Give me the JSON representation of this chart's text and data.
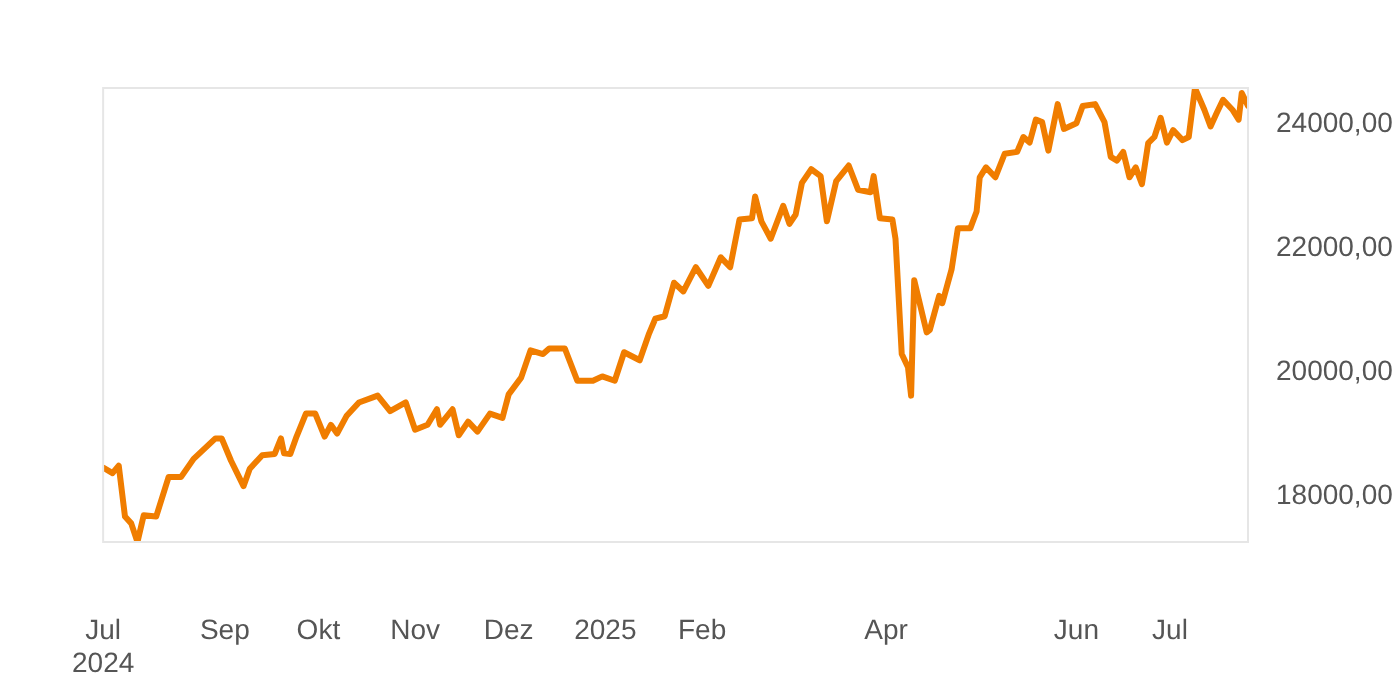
{
  "chart_data": {
    "type": "line",
    "xlim": [
      "2024-07-24",
      "2025-07-26"
    ],
    "xticks": [
      {
        "value": "2024-07-24",
        "label": "Jul\n2024"
      },
      {
        "value": "2024-09-01",
        "label": "Sep"
      },
      {
        "value": "2024-10-01",
        "label": "Okt"
      },
      {
        "value": "2024-11-01",
        "label": "Nov"
      },
      {
        "value": "2024-12-01",
        "label": "Dez"
      },
      {
        "value": "2025-01-01",
        "label": "2025"
      },
      {
        "value": "2025-02-01",
        "label": "Feb"
      },
      {
        "value": "2025-04-01",
        "label": "Apr"
      },
      {
        "value": "2025-06-01",
        "label": "Jun"
      },
      {
        "value": "2025-07-01",
        "label": "Jul"
      }
    ],
    "yticks": [
      {
        "value": 18000,
        "label": "18000,00"
      },
      {
        "value": 20000,
        "label": "20000,00"
      },
      {
        "value": 22000,
        "label": "22000,00"
      },
      {
        "value": 24000,
        "label": "24000,00"
      }
    ],
    "ylim": [
      17270,
      24590
    ],
    "grid": false,
    "legend": false,
    "marker": "none",
    "line_style": "solid",
    "series": [
      {
        "color": "#f07d00",
        "x": [
          "2024-07-24",
          "2024-07-27",
          "2024-07-29",
          "2024-07-31",
          "2024-08-02",
          "2024-08-04",
          "2024-08-06",
          "2024-08-10",
          "2024-08-14",
          "2024-08-18",
          "2024-08-22",
          "2024-08-29",
          "2024-08-31",
          "2024-09-03",
          "2024-09-07",
          "2024-09-09",
          "2024-09-13",
          "2024-09-17",
          "2024-09-19",
          "2024-09-20",
          "2024-09-22",
          "2024-09-24",
          "2024-09-27",
          "2024-09-30",
          "2024-10-03",
          "2024-10-05",
          "2024-10-07",
          "2024-10-10",
          "2024-10-14",
          "2024-10-20",
          "2024-10-24",
          "2024-10-29",
          "2024-11-01",
          "2024-11-05",
          "2024-11-08",
          "2024-11-09",
          "2024-11-13",
          "2024-11-15",
          "2024-11-18",
          "2024-11-21",
          "2024-11-25",
          "2024-11-29",
          "2024-12-01",
          "2024-12-05",
          "2024-12-08",
          "2024-12-12",
          "2024-12-14",
          "2024-12-19",
          "2024-12-23",
          "2024-12-28",
          "2024-12-31",
          "2025-01-04",
          "2025-01-07",
          "2025-01-12",
          "2025-01-15",
          "2025-01-17",
          "2025-01-20",
          "2025-01-23",
          "2025-01-26",
          "2025-01-30",
          "2025-02-03",
          "2025-02-07",
          "2025-02-10",
          "2025-02-13",
          "2025-02-17",
          "2025-02-18",
          "2025-02-20",
          "2025-02-23",
          "2025-02-27",
          "2025-03-01",
          "2025-03-03",
          "2025-03-05",
          "2025-03-08",
          "2025-03-11",
          "2025-03-13",
          "2025-03-16",
          "2025-03-20",
          "2025-03-23",
          "2025-03-27",
          "2025-03-28",
          "2025-03-30",
          "2025-04-03",
          "2025-04-04",
          "2025-04-06",
          "2025-04-08",
          "2025-04-09",
          "2025-04-10",
          "2025-04-14",
          "2025-04-15",
          "2025-04-18",
          "2025-04-19",
          "2025-04-22",
          "2025-04-24",
          "2025-04-28",
          "2025-04-30",
          "2025-05-01",
          "2025-05-03",
          "2025-05-06",
          "2025-05-09",
          "2025-05-13",
          "2025-05-15",
          "2025-05-17",
          "2025-05-19",
          "2025-05-21",
          "2025-05-23",
          "2025-05-26",
          "2025-05-28",
          "2025-06-01",
          "2025-06-03",
          "2025-06-07",
          "2025-06-10",
          "2025-06-12",
          "2025-06-14",
          "2025-06-16",
          "2025-06-18",
          "2025-06-20",
          "2025-06-22",
          "2025-06-24",
          "2025-06-26",
          "2025-06-28",
          "2025-06-30",
          "2025-07-02",
          "2025-07-05",
          "2025-07-07",
          "2025-07-09",
          "2025-07-12",
          "2025-07-14",
          "2025-07-16",
          "2025-07-18",
          "2025-07-21",
          "2025-07-23",
          "2025-07-24",
          "2025-07-26"
        ],
        "values": [
          18470,
          18380,
          18500,
          17680,
          17570,
          17270,
          17700,
          17680,
          18320,
          18320,
          18610,
          18940,
          18940,
          18580,
          18170,
          18450,
          18670,
          18690,
          18940,
          18700,
          18690,
          18970,
          19340,
          19340,
          18970,
          19160,
          19020,
          19300,
          19520,
          19630,
          19380,
          19520,
          19080,
          19160,
          19410,
          19160,
          19410,
          18990,
          19210,
          19050,
          19340,
          19270,
          19650,
          19920,
          20360,
          20300,
          20390,
          20390,
          19870,
          19870,
          19940,
          19870,
          20330,
          20200,
          20630,
          20870,
          20910,
          21450,
          21310,
          21700,
          21400,
          21860,
          21700,
          22470,
          22490,
          22840,
          22440,
          22160,
          22690,
          22400,
          22550,
          23060,
          23280,
          23170,
          22440,
          23090,
          23340,
          22950,
          22910,
          23170,
          22490,
          22470,
          22160,
          20300,
          20090,
          19630,
          21490,
          20650,
          20690,
          21240,
          21120,
          21670,
          22330,
          22330,
          22600,
          23150,
          23310,
          23150,
          23530,
          23560,
          23800,
          23710,
          24080,
          24040,
          23580,
          24330,
          23930,
          24020,
          24300,
          24330,
          24040,
          23480,
          23420,
          23560,
          23150,
          23310,
          23040,
          23700,
          23800,
          24110,
          23710,
          23910,
          23750,
          23800,
          24590,
          24240,
          23970,
          24190,
          24400,
          24240,
          24080,
          24510,
          24300
        ]
      }
    ]
  }
}
